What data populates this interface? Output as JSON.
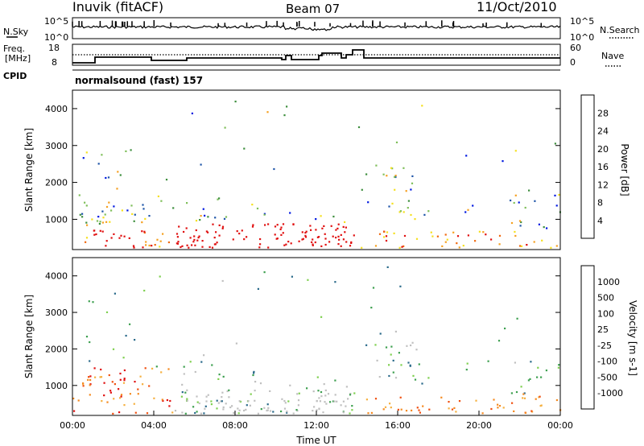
{
  "header": {
    "station": "Inuvik (fitACF)",
    "beam": "Beam 07",
    "date": "11/Oct/2010"
  },
  "summary_panels": {
    "nsky": {
      "label": "N.Sky",
      "tick_top": "10^5",
      "tick_bottom": "10^0"
    },
    "nsearch": {
      "label": "N.Search",
      "tick_top": "10^5",
      "tick_bottom": "10^0"
    },
    "freq": {
      "label_line1": "Freq.",
      "label_line2": "[MHz]",
      "tick_top": "18",
      "tick_bottom": "8"
    },
    "nave": {
      "label": "Nave",
      "tick_top": "60",
      "tick_bottom": "0"
    },
    "cpid": {
      "label": "CPID",
      "text": "normalsound (fast) 157"
    }
  },
  "colors": {
    "power": [
      "#0018e0",
      "#1f55a8",
      "#3e8f3e",
      "#7fbf5a",
      "#f5e020",
      "#f5a020",
      "#f06a10",
      "#e01010"
    ],
    "velocity": [
      "#e01010",
      "#f05010",
      "#f58a20",
      "#f5b040",
      "#c0c0c0",
      "#7fd050",
      "#3ea050",
      "#2a6a8a",
      "#1f3a9a",
      "#1a1ad0"
    ]
  },
  "chart_data": [
    {
      "type": "heatmap",
      "title": "Power",
      "xlabel": "",
      "ylabel": "Slant Range [km]",
      "colorbar_label": "Power [dB]",
      "colorbar_ticks": [
        "4",
        "8",
        "12",
        "16",
        "20",
        "24",
        "28"
      ],
      "y_ticks": [
        "1000",
        "2000",
        "3000",
        "4000"
      ],
      "ylim": [
        180,
        4500
      ],
      "xlim_hours": [
        0,
        24
      ]
    },
    {
      "type": "heatmap",
      "title": "Velocity",
      "xlabel": "Time UT",
      "ylabel": "Slant Range [km]",
      "colorbar_label": "Velocity [m s-1]",
      "colorbar_ticks": [
        "1000",
        "500",
        "100",
        "25",
        "-25",
        "-100",
        "-500",
        "-1000"
      ],
      "y_ticks": [
        "1000",
        "2000",
        "3000",
        "4000"
      ],
      "x_ticks": [
        "00:00",
        "04:00",
        "08:00",
        "12:00",
        "16:00",
        "20:00",
        "00:00"
      ],
      "ylim": [
        180,
        4500
      ],
      "xlim_hours": [
        0,
        24
      ]
    }
  ]
}
